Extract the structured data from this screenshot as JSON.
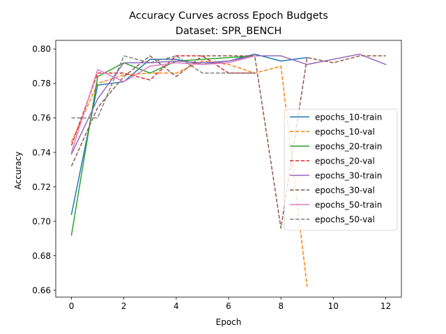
{
  "chart_data": {
    "type": "line",
    "title": "Accuracy Curves across Epoch Budgets",
    "subtitle": "Dataset: SPR_BENCH",
    "xlabel": "Epoch",
    "ylabel": "Accuracy",
    "xlim": [
      -0.6,
      12.6
    ],
    "ylim": [
      0.656,
      0.805
    ],
    "xticks": [
      0,
      2,
      4,
      6,
      8,
      10,
      12
    ],
    "yticks": [
      0.66,
      0.68,
      0.7,
      0.72,
      0.74,
      0.76,
      0.78,
      0.8
    ],
    "ytick_labels": [
      "0.66",
      "0.68",
      "0.70",
      "0.72",
      "0.74",
      "0.76",
      "0.78",
      "0.80"
    ],
    "grid": false,
    "legend_position": "center-right",
    "series": [
      {
        "name": "epochs_10-train",
        "color": "#1f77b4",
        "dash": "solid",
        "x": [
          0,
          1,
          2,
          3,
          4,
          5,
          6,
          7,
          8,
          9
        ],
        "y": [
          0.704,
          0.779,
          0.781,
          0.794,
          0.794,
          0.791,
          0.793,
          0.797,
          0.793,
          0.795
        ]
      },
      {
        "name": "epochs_10-val",
        "color": "#ff7f0e",
        "dash": "dashed",
        "x": [
          0,
          1,
          2,
          3,
          4,
          5,
          6,
          7,
          8,
          9
        ],
        "y": [
          0.746,
          0.78,
          0.785,
          0.786,
          0.786,
          0.793,
          0.791,
          0.786,
          0.79,
          0.662
        ]
      },
      {
        "name": "epochs_20-train",
        "color": "#2ca02c",
        "dash": "solid",
        "x": [
          0,
          1,
          2,
          3,
          4,
          5,
          6,
          7
        ],
        "y": [
          0.692,
          0.784,
          0.792,
          0.786,
          0.793,
          0.794,
          0.795,
          0.796
        ]
      },
      {
        "name": "epochs_20-val",
        "color": "#d62728",
        "dash": "dashed",
        "x": [
          0,
          1,
          2,
          3,
          4,
          5,
          6,
          7
        ],
        "y": [
          0.744,
          0.786,
          0.786,
          0.782,
          0.796,
          0.796,
          0.786,
          0.786
        ]
      },
      {
        "name": "epochs_30-train",
        "color": "#9467bd",
        "dash": "solid",
        "x": [
          0,
          1,
          2,
          3,
          4,
          5,
          6,
          7,
          8,
          9,
          10,
          11,
          12
        ],
        "y": [
          0.739,
          0.771,
          0.792,
          0.792,
          0.793,
          0.792,
          0.793,
          0.796,
          0.796,
          0.791,
          0.794,
          0.797,
          0.791
        ]
      },
      {
        "name": "epochs_30-val",
        "color": "#8c564b",
        "dash": "dashed",
        "x": [
          0,
          1,
          2,
          3,
          4,
          5,
          6,
          7,
          8,
          9,
          10,
          11,
          12
        ],
        "y": [
          0.732,
          0.766,
          0.784,
          0.796,
          0.784,
          0.796,
          0.796,
          0.796,
          0.696,
          0.795,
          0.792,
          0.796,
          0.796
        ]
      },
      {
        "name": "epochs_50-train",
        "color": "#e377c2",
        "dash": "solid",
        "x": [
          0,
          1,
          2,
          3,
          4,
          5,
          6,
          7
        ],
        "y": [
          0.74,
          0.788,
          0.781,
          0.79,
          0.792,
          0.791,
          0.792,
          0.796
        ]
      },
      {
        "name": "epochs_50-val",
        "color": "#7f7f7f",
        "dash": "dashed",
        "x": [
          0,
          1,
          2,
          3,
          4,
          5,
          6,
          7
        ],
        "y": [
          0.76,
          0.76,
          0.796,
          0.792,
          0.796,
          0.786,
          0.786,
          0.786
        ]
      }
    ]
  }
}
